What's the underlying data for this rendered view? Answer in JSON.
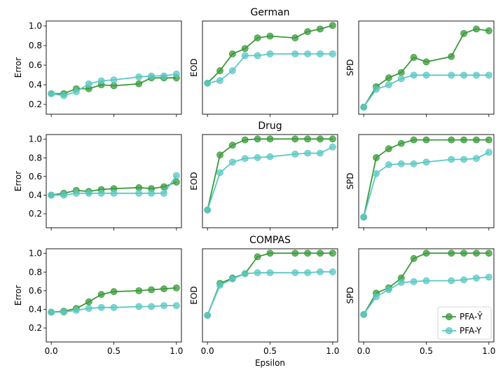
{
  "colors": {
    "pfa_yhat": "#3a9a3a",
    "pfa_y": "#5bc8c4"
  },
  "legend": {
    "items": [
      "PFA-Ŷ",
      "PFA-Y"
    ],
    "position": "lower-right"
  },
  "shared_x": [
    0.0,
    0.1,
    0.2,
    0.3,
    0.4,
    0.5,
    0.7,
    0.8,
    0.9,
    1.0
  ],
  "x_ticks": [
    "0.0",
    "0.5",
    "1.0"
  ],
  "xlabel": "Epsilon",
  "chart_data": [
    {
      "type": "line",
      "row": "German",
      "title": "German",
      "ylabel": "Error",
      "ylim": [
        0.1,
        1.05
      ],
      "yticks": [
        "0.2",
        "0.4",
        "0.6",
        "0.8",
        "1.0"
      ],
      "series": [
        {
          "name": "PFA-Ŷ",
          "values": [
            0.31,
            0.31,
            0.36,
            0.36,
            0.4,
            0.39,
            0.41,
            0.47,
            0.47,
            0.47
          ]
        },
        {
          "name": "PFA-Y",
          "values": [
            0.31,
            0.29,
            0.33,
            0.41,
            0.44,
            0.45,
            0.48,
            0.49,
            0.49,
            0.51
          ]
        }
      ]
    },
    {
      "type": "line",
      "row": "German",
      "title": "",
      "ylabel": "EOD",
      "ylim": [
        0,
        1.05
      ],
      "series": [
        {
          "name": "PFA-Ŷ",
          "values": [
            0.35,
            0.49,
            0.68,
            0.74,
            0.86,
            0.88,
            0.86,
            0.93,
            0.96,
            1.0
          ]
        },
        {
          "name": "PFA-Y",
          "values": [
            0.35,
            0.38,
            0.49,
            0.66,
            0.66,
            0.68,
            0.68,
            0.68,
            0.68,
            0.68
          ]
        }
      ]
    },
    {
      "type": "line",
      "row": "German",
      "title": "",
      "ylabel": "SPD",
      "ylim": [
        0,
        1.05
      ],
      "series": [
        {
          "name": "PFA-Ŷ",
          "values": [
            0.08,
            0.31,
            0.41,
            0.47,
            0.64,
            0.59,
            0.65,
            0.91,
            0.96,
            0.94
          ]
        },
        {
          "name": "PFA-Y",
          "values": [
            0.08,
            0.28,
            0.33,
            0.4,
            0.44,
            0.44,
            0.44,
            0.44,
            0.44,
            0.44
          ]
        }
      ]
    },
    {
      "type": "line",
      "row": "Drug",
      "title": "Drug",
      "ylabel": "Error",
      "ylim": [
        0.05,
        1.05
      ],
      "yticks": [
        "0.2",
        "0.4",
        "0.6",
        "0.8",
        "1.0"
      ],
      "series": [
        {
          "name": "PFA-Ŷ",
          "values": [
            0.4,
            0.42,
            0.45,
            0.44,
            0.46,
            0.47,
            0.48,
            0.47,
            0.49,
            0.54
          ]
        },
        {
          "name": "PFA-Y",
          "values": [
            0.4,
            0.4,
            0.42,
            0.42,
            0.42,
            0.42,
            0.42,
            0.42,
            0.42,
            0.61
          ]
        }
      ]
    },
    {
      "type": "line",
      "row": "Drug",
      "title": "",
      "ylabel": "EOD",
      "ylim": [
        0,
        1.05
      ],
      "series": [
        {
          "name": "PFA-Ŷ",
          "values": [
            0.2,
            0.82,
            0.93,
            0.99,
            1.0,
            1.0,
            1.0,
            1.0,
            1.0,
            1.0
          ]
        },
        {
          "name": "PFA-Y",
          "values": [
            0.2,
            0.62,
            0.74,
            0.78,
            0.79,
            0.8,
            0.83,
            0.84,
            0.84,
            0.91
          ]
        }
      ]
    },
    {
      "type": "line",
      "row": "Drug",
      "title": "",
      "ylabel": "SPD",
      "ylim": [
        0,
        1.05
      ],
      "series": [
        {
          "name": "PFA-Ŷ",
          "values": [
            0.12,
            0.79,
            0.89,
            0.95,
            0.99,
            0.99,
            0.99,
            0.99,
            0.99,
            0.99
          ]
        },
        {
          "name": "PFA-Y",
          "values": [
            0.12,
            0.61,
            0.71,
            0.72,
            0.72,
            0.74,
            0.77,
            0.77,
            0.78,
            0.85
          ]
        }
      ]
    },
    {
      "type": "line",
      "row": "COMPAS",
      "title": "COMPAS",
      "ylabel": "Error",
      "ylim": [
        0.05,
        1.05
      ],
      "yticks": [
        "0.2",
        "0.4",
        "0.6",
        "0.8",
        "1.0"
      ],
      "series": [
        {
          "name": "PFA-Ŷ",
          "values": [
            0.37,
            0.38,
            0.41,
            0.48,
            0.56,
            0.59,
            0.6,
            0.61,
            0.62,
            0.63
          ]
        },
        {
          "name": "PFA-Y",
          "values": [
            0.37,
            0.37,
            0.39,
            0.41,
            0.42,
            0.42,
            0.43,
            0.43,
            0.44,
            0.44
          ]
        }
      ]
    },
    {
      "type": "line",
      "row": "COMPAS",
      "title": "",
      "ylabel": "EOD",
      "ylim": [
        0,
        1.05
      ],
      "series": [
        {
          "name": "PFA-Ŷ",
          "values": [
            0.3,
            0.66,
            0.72,
            0.77,
            0.96,
            1.0,
            1.0,
            1.0,
            1.0,
            1.0
          ]
        },
        {
          "name": "PFA-Y",
          "values": [
            0.3,
            0.64,
            0.71,
            0.77,
            0.78,
            0.78,
            0.78,
            0.78,
            0.79,
            0.79
          ]
        }
      ]
    },
    {
      "type": "line",
      "row": "COMPAS",
      "title": "",
      "ylabel": "SPD",
      "ylim": [
        0,
        1.05
      ],
      "series": [
        {
          "name": "PFA-Ŷ",
          "values": [
            0.31,
            0.55,
            0.61,
            0.72,
            0.94,
            1.0,
            1.0,
            1.0,
            1.0,
            1.0
          ]
        },
        {
          "name": "PFA-Y",
          "values": [
            0.31,
            0.51,
            0.59,
            0.67,
            0.68,
            0.69,
            0.69,
            0.7,
            0.72,
            0.73
          ]
        }
      ]
    }
  ]
}
